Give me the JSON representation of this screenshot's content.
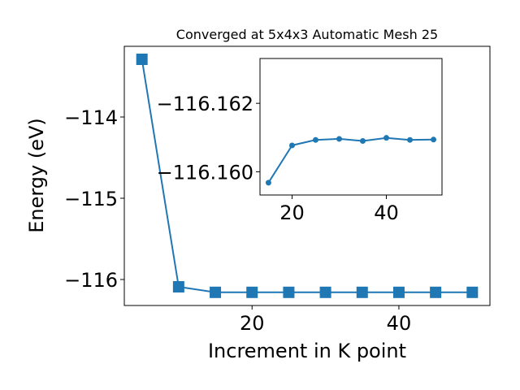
{
  "chart_data": [
    {
      "type": "line",
      "title": "Converged at 5x4x3 Automatic Mesh 25",
      "xlabel": "Increment in K point",
      "ylabel": "Energy (eV)",
      "xlim": [
        2.6,
        52.4
      ],
      "ylim": [
        -116.32,
        -113.13
      ],
      "xticks": [
        20,
        40
      ],
      "xtick_labels": [
        "20",
        "40"
      ],
      "yticks": [
        -116,
        -115,
        -114
      ],
      "ytick_labels": [
        "−116",
        "−115",
        "−114"
      ],
      "grid": false,
      "color": "#1f77b4",
      "marker": "square",
      "series": [
        {
          "x": [
            5,
            10,
            15,
            20,
            25,
            30,
            35,
            40,
            45,
            50
          ],
          "y": [
            -113.29,
            -116.09,
            -116.158,
            -116.158,
            -116.158,
            -116.158,
            -116.158,
            -116.158,
            -116.158,
            -116.158
          ]
        }
      ]
    },
    {
      "type": "line",
      "title": "",
      "xlabel": "",
      "ylabel": "",
      "xlim": [
        13.2,
        51.8
      ],
      "ylim": [
        -116.15932,
        -116.16331
      ],
      "xticks": [
        20,
        40
      ],
      "xtick_labels": [
        "20",
        "40"
      ],
      "yticks": [
        -116.16,
        -116.162
      ],
      "ytick_labels": [
        "−116.160",
        "−116.162"
      ],
      "grid": false,
      "color": "#1f77b4",
      "marker": "circle",
      "series": [
        {
          "x": [
            15,
            20,
            25,
            30,
            35,
            40,
            45,
            50
          ],
          "y": [
            -116.15968,
            -116.16077,
            -116.16093,
            -116.16096,
            -116.1609,
            -116.16099,
            -116.16093,
            -116.16094
          ]
        }
      ]
    }
  ]
}
